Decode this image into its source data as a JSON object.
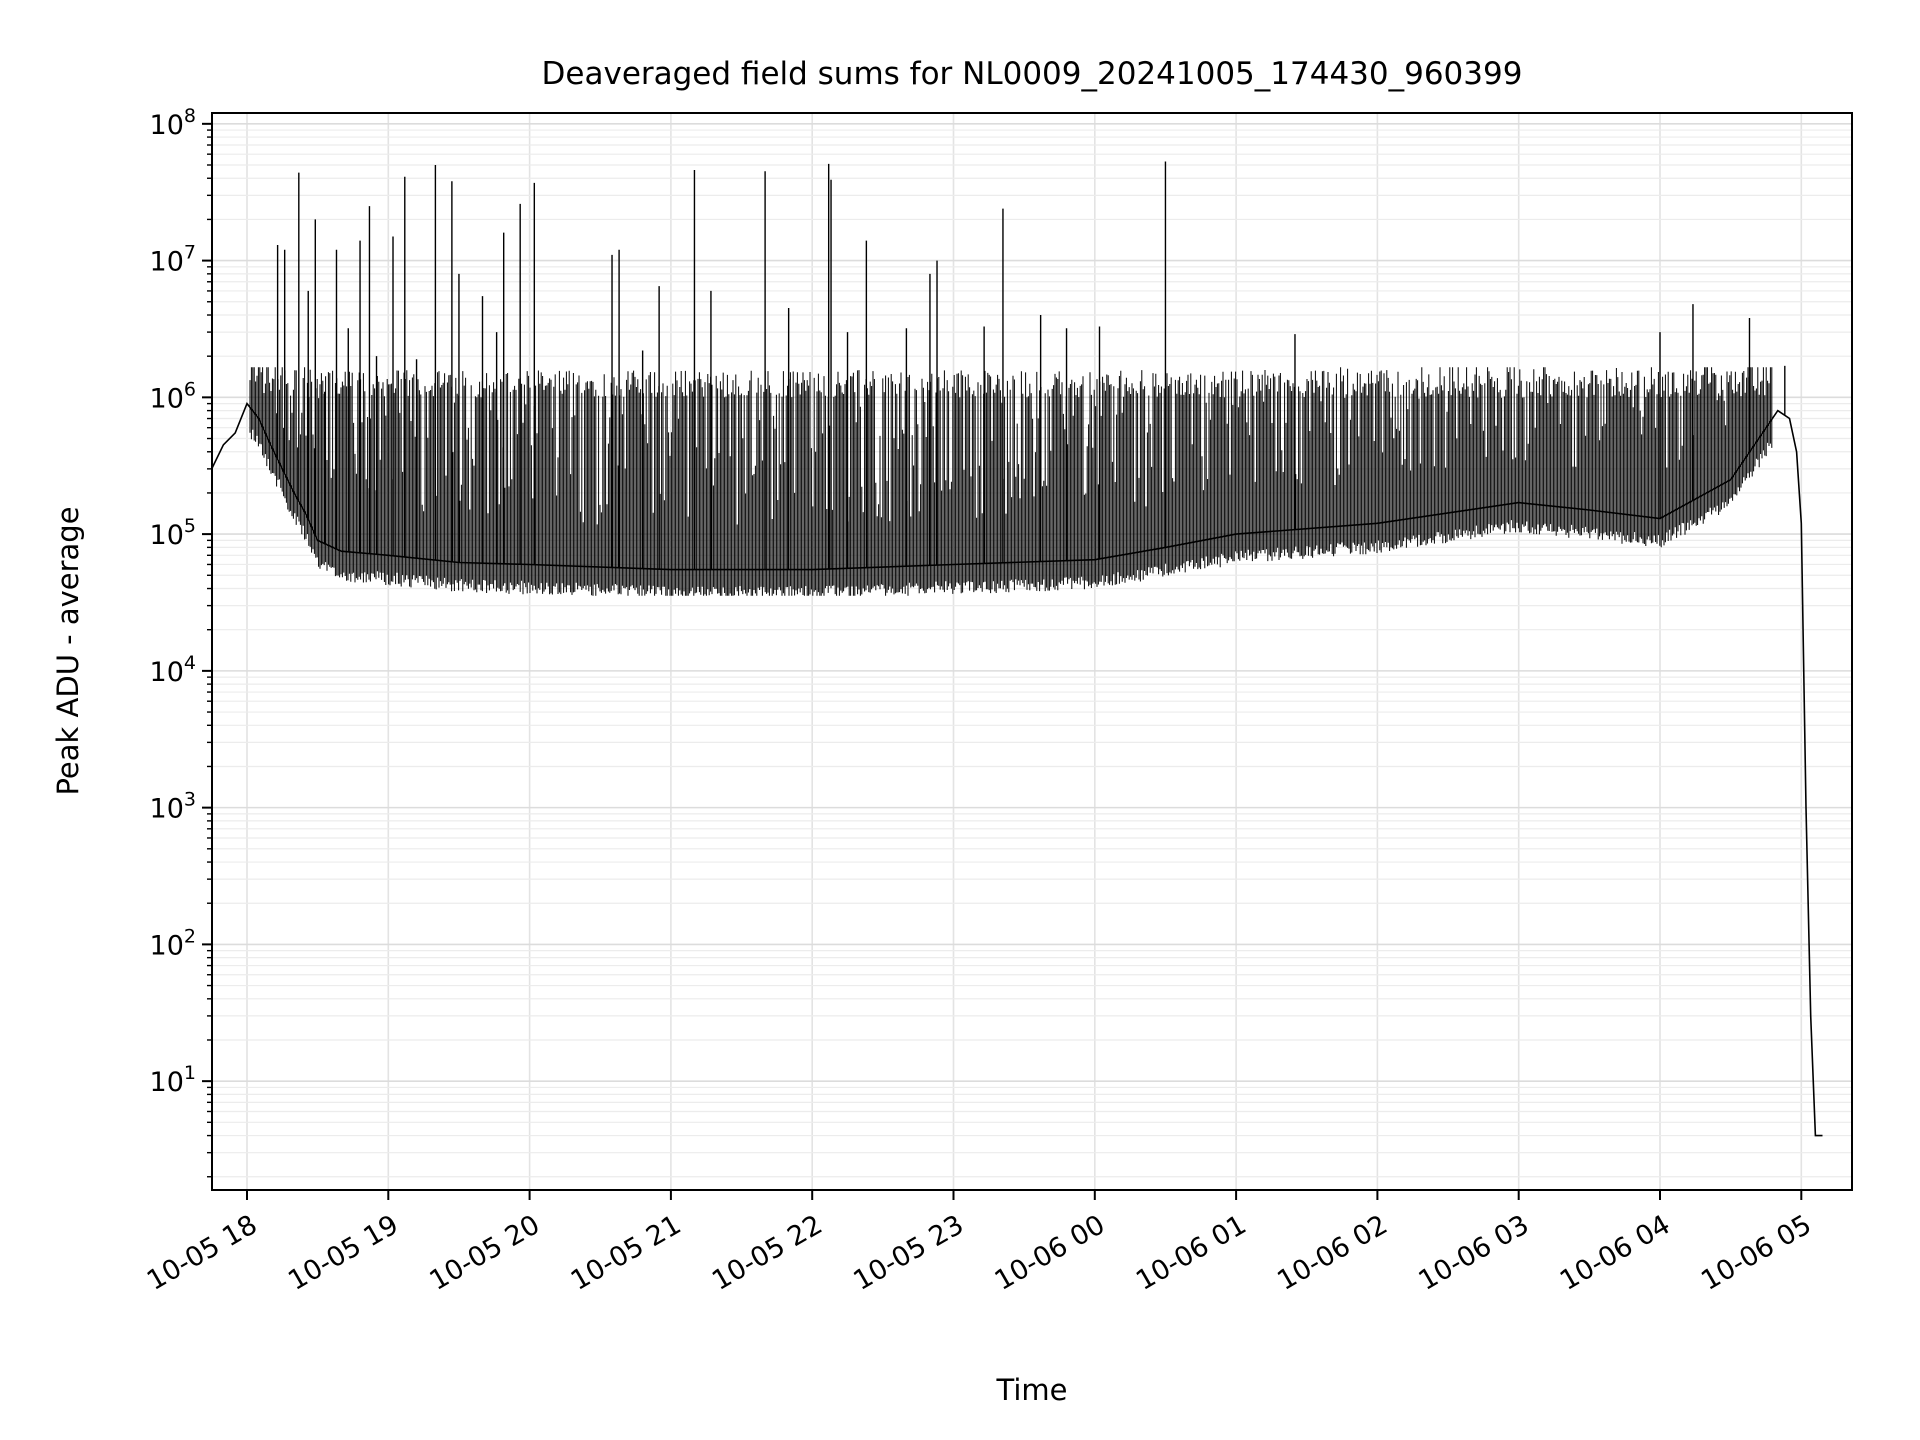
{
  "chart_data": {
    "type": "line",
    "title": "Deaveraged field sums for NL0009_20241005_174430_960399",
    "xlabel": "Time",
    "ylabel": "Peak ADU - average",
    "yscale": "log",
    "ylim": [
      1.6,
      120000000
    ],
    "xlim": [
      "10-05 17:44",
      "10-06 05:09"
    ],
    "grid": true,
    "line_color": "#000000",
    "x_ticks": [
      "10-05 18",
      "10-05 19",
      "10-05 20",
      "10-05 21",
      "10-05 22",
      "10-05 23",
      "10-06 00",
      "10-06 01",
      "10-06 02",
      "10-06 03",
      "10-06 04",
      "10-06 05"
    ],
    "y_ticks": [
      {
        "base": "10",
        "exp": "1"
      },
      {
        "base": "10",
        "exp": "2"
      },
      {
        "base": "10",
        "exp": "3"
      },
      {
        "base": "10",
        "exp": "4"
      },
      {
        "base": "10",
        "exp": "5"
      },
      {
        "base": "10",
        "exp": "6"
      },
      {
        "base": "10",
        "exp": "7"
      },
      {
        "base": "10",
        "exp": "8"
      }
    ],
    "series": [
      {
        "x": [
          "10-05 17:45",
          "10-05 17:50",
          "10-05 17:55",
          "10-05 18:00",
          "10-05 18:05",
          "10-05 18:10",
          "10-05 18:15",
          "10-05 18:20",
          "10-05 18:25",
          "10-05 18:30",
          "10-05 18:40",
          "10-05 19:00",
          "10-05 19:30",
          "10-05 20:00",
          "10-05 21:00",
          "10-05 22:00",
          "10-05 23:00",
          "10-06 00:00",
          "10-06 00:30",
          "10-06 01:00",
          "10-06 02:00",
          "10-06 03:00",
          "10-06 03:30",
          "10-06 04:00",
          "10-06 04:30",
          "10-06 04:50",
          "10-06 04:55",
          "10-06 04:58",
          "10-06 05:00",
          "10-06 05:02",
          "10-06 05:04",
          "10-06 05:06",
          "10-06 05:07",
          "10-06 05:09"
        ],
        "y": [
          300000,
          450000,
          550000,
          900000,
          700000,
          450000,
          300000,
          200000,
          140000,
          90000,
          75000,
          70000,
          62000,
          60000,
          55000,
          55000,
          60000,
          65000,
          80000,
          100000,
          120000,
          170000,
          150000,
          130000,
          250000,
          800000,
          700000,
          400000,
          120000,
          1000,
          30,
          4,
          4,
          4
        ]
      }
    ],
    "spikes": [
      {
        "x": "10-05 18:13",
        "y": 13000000
      },
      {
        "x": "10-05 18:16",
        "y": 12000000
      },
      {
        "x": "10-05 18:22",
        "y": 44000000
      },
      {
        "x": "10-05 18:26",
        "y": 6000000
      },
      {
        "x": "10-05 18:29",
        "y": 20000000
      },
      {
        "x": "10-05 18:33",
        "y": 1100000
      },
      {
        "x": "10-05 18:38",
        "y": 12000000
      },
      {
        "x": "10-05 18:43",
        "y": 3200000
      },
      {
        "x": "10-05 18:48",
        "y": 14000000
      },
      {
        "x": "10-05 18:52",
        "y": 25000000
      },
      {
        "x": "10-05 18:55",
        "y": 2000000
      },
      {
        "x": "10-05 19:02",
        "y": 15000000
      },
      {
        "x": "10-05 19:07",
        "y": 41000000
      },
      {
        "x": "10-05 19:12",
        "y": 1900000
      },
      {
        "x": "10-05 19:20",
        "y": 50000000
      },
      {
        "x": "10-05 19:27",
        "y": 38000000
      },
      {
        "x": "10-05 19:30",
        "y": 8000000
      },
      {
        "x": "10-05 19:40",
        "y": 5500000
      },
      {
        "x": "10-05 19:46",
        "y": 3000000
      },
      {
        "x": "10-05 19:49",
        "y": 16000000
      },
      {
        "x": "10-05 19:56",
        "y": 26000000
      },
      {
        "x": "10-05 20:02",
        "y": 37000000
      },
      {
        "x": "10-05 20:35",
        "y": 11000000
      },
      {
        "x": "10-05 20:38",
        "y": 12000000
      },
      {
        "x": "10-05 20:48",
        "y": 2200000
      },
      {
        "x": "10-05 20:55",
        "y": 6500000
      },
      {
        "x": "10-05 21:10",
        "y": 46000000
      },
      {
        "x": "10-05 21:17",
        "y": 6000000
      },
      {
        "x": "10-05 21:40",
        "y": 45000000
      },
      {
        "x": "10-05 21:50",
        "y": 4500000
      },
      {
        "x": "10-05 22:07",
        "y": 51000000
      },
      {
        "x": "10-05 22:08",
        "y": 39000000
      },
      {
        "x": "10-05 22:15",
        "y": 3000000
      },
      {
        "x": "10-05 22:23",
        "y": 14000000
      },
      {
        "x": "10-05 22:40",
        "y": 3200000
      },
      {
        "x": "10-05 22:50",
        "y": 8000000
      },
      {
        "x": "10-05 22:53",
        "y": 10000000
      },
      {
        "x": "10-05 23:13",
        "y": 3300000
      },
      {
        "x": "10-05 23:21",
        "y": 24000000
      },
      {
        "x": "10-05 23:37",
        "y": 4000000
      },
      {
        "x": "10-05 23:48",
        "y": 3200000
      },
      {
        "x": "10-06 00:02",
        "y": 3300000
      },
      {
        "x": "10-06 00:30",
        "y": 53000000
      },
      {
        "x": "10-06 01:25",
        "y": 2900000
      },
      {
        "x": "10-06 04:00",
        "y": 3000000
      },
      {
        "x": "10-06 04:14",
        "y": 4800000
      },
      {
        "x": "10-06 04:38",
        "y": 3800000
      },
      {
        "x": "10-06 04:53",
        "y": 1700000
      }
    ]
  }
}
